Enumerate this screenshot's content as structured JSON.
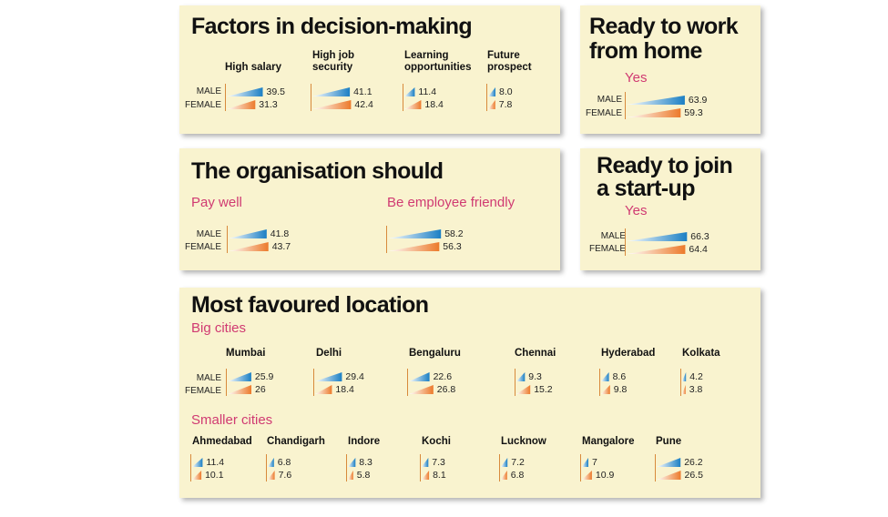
{
  "colors": {
    "male": "#1b7fc4",
    "female": "#ec7a2b",
    "accent": "#d03a72",
    "panel": "#f9f3cf"
  },
  "legend": {
    "male": "MALE",
    "female": "FEMALE"
  },
  "panels": {
    "factors": {
      "title": "Factors in decision-making"
    },
    "wfh": {
      "title_line1": "Ready to work",
      "title_line2": "from home",
      "subtitle": "Yes"
    },
    "org": {
      "title": "The organisation should"
    },
    "startup": {
      "title_line1": "Ready to join",
      "title_line2": "a start-up",
      "subtitle": "Yes"
    },
    "location": {
      "title": "Most favoured location",
      "big_label": "Big cities",
      "small_label": "Smaller cities"
    }
  },
  "chart_data": [
    {
      "id": "factors",
      "type": "bar",
      "title": "Factors in decision-making",
      "categories": [
        "High salary",
        "High job security",
        "Learning opportunities",
        "Future prospect"
      ],
      "series": [
        {
          "name": "MALE",
          "values": [
            39.5,
            41.1,
            11.4,
            8.0
          ]
        },
        {
          "name": "FEMALE",
          "values": [
            31.3,
            42.4,
            18.4,
            7.8
          ]
        }
      ],
      "labels": {
        "male": [
          "39.5",
          "41.1",
          "11.4",
          "8.0"
        ],
        "female": [
          "31.3",
          "42.4",
          "18.4",
          "7.8"
        ]
      }
    },
    {
      "id": "wfh",
      "type": "bar",
      "title": "Ready to work from home",
      "categories": [
        "Yes"
      ],
      "series": [
        {
          "name": "MALE",
          "values": [
            63.9
          ]
        },
        {
          "name": "FEMALE",
          "values": [
            59.3
          ]
        }
      ],
      "labels": {
        "male": [
          "63.9"
        ],
        "female": [
          "59.3"
        ]
      }
    },
    {
      "id": "org",
      "type": "bar",
      "title": "The organisation should",
      "categories": [
        "Pay well",
        "Be employee friendly"
      ],
      "series": [
        {
          "name": "MALE",
          "values": [
            41.8,
            58.2
          ]
        },
        {
          "name": "FEMALE",
          "values": [
            43.7,
            56.3
          ]
        }
      ],
      "labels": {
        "male": [
          "41.8",
          "58.2"
        ],
        "female": [
          "43.7",
          "56.3"
        ]
      }
    },
    {
      "id": "startup",
      "type": "bar",
      "title": "Ready to join a start-up",
      "categories": [
        "Yes"
      ],
      "series": [
        {
          "name": "MALE",
          "values": [
            66.3
          ]
        },
        {
          "name": "FEMALE",
          "values": [
            64.4
          ]
        }
      ],
      "labels": {
        "male": [
          "66.3"
        ],
        "female": [
          "64.4"
        ]
      }
    },
    {
      "id": "big",
      "type": "bar",
      "title": "Most favoured location",
      "subtitle": "Big cities",
      "categories": [
        "Mumbai",
        "Delhi",
        "Bengaluru",
        "Chennai",
        "Hyderabad",
        "Kolkata"
      ],
      "series": [
        {
          "name": "MALE",
          "values": [
            25.9,
            29.4,
            22.6,
            9.3,
            8.6,
            4.2
          ]
        },
        {
          "name": "FEMALE",
          "values": [
            26,
            18.4,
            26.8,
            15.2,
            9.8,
            3.8
          ]
        }
      ],
      "labels": {
        "male": [
          "25.9",
          "29.4",
          "22.6",
          "9.3",
          "8.6",
          "4.2"
        ],
        "female": [
          "26",
          "18.4",
          "26.8",
          "15.2",
          "9.8",
          "3.8"
        ]
      }
    },
    {
      "id": "small",
      "type": "bar",
      "subtitle": "Smaller cities",
      "categories": [
        "Ahmedabad",
        "Chandigarh",
        "Indore",
        "Kochi",
        "Lucknow",
        "Mangalore",
        "Pune"
      ],
      "series": [
        {
          "name": "MALE",
          "values": [
            11.4,
            6.8,
            8.3,
            7.3,
            7.2,
            7,
            26.2
          ]
        },
        {
          "name": "FEMALE",
          "values": [
            10.1,
            7.6,
            5.8,
            8.1,
            6.8,
            10.9,
            26.5
          ]
        }
      ],
      "labels": {
        "male": [
          "11.4",
          "6.8",
          "8.3",
          "7.3",
          "7.2",
          "7",
          "26.2"
        ],
        "female": [
          "10.1",
          "7.6",
          "5.8",
          "8.1",
          "6.8",
          "10.9",
          "26.5"
        ]
      }
    }
  ]
}
